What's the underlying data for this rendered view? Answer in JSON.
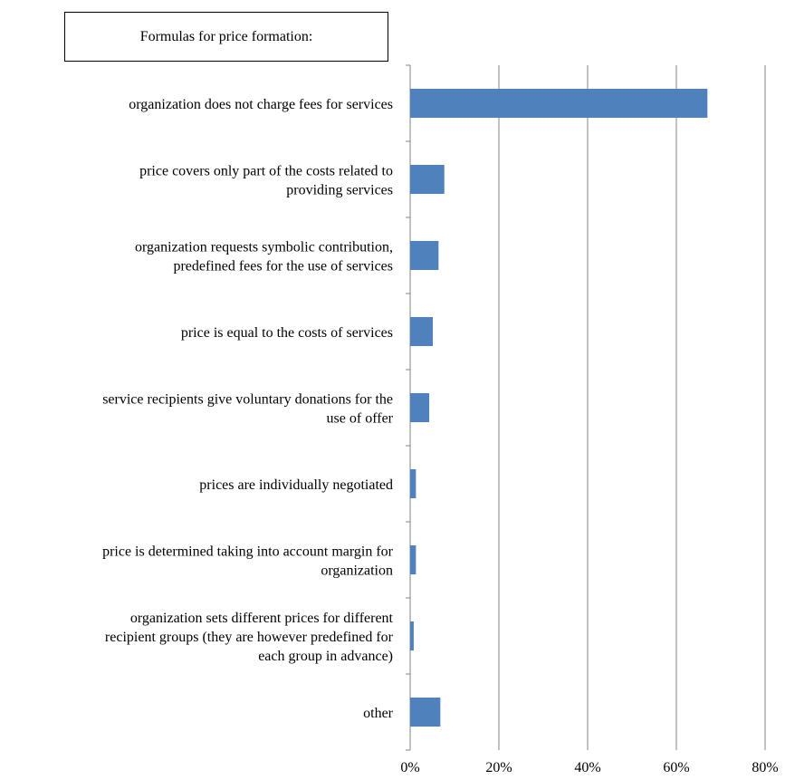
{
  "chart_data": {
    "type": "bar",
    "orientation": "horizontal",
    "title": "Formulas for price formation:",
    "categories": [
      [
        "organization does not charge fees for services"
      ],
      [
        "price covers only part of the costs related to",
        "providing services"
      ],
      [
        "organization requests symbolic contribution,",
        "predefined fees for the use of services"
      ],
      [
        "price is equal to the costs of services"
      ],
      [
        "service recipients give voluntary donations for the",
        "use of offer"
      ],
      [
        "prices are individually negotiated"
      ],
      [
        "price is determined taking into account margin for",
        "organization"
      ],
      [
        "organization sets different prices for different",
        "recipient groups (they are however predefined for",
        "each group in advance)"
      ],
      [
        "other"
      ]
    ],
    "values": [
      0.67,
      0.077,
      0.064,
      0.051,
      0.043,
      0.013,
      0.013,
      0.008,
      0.068
    ],
    "xlim": [
      0,
      0.8
    ],
    "xticks": [
      "0%",
      "20%",
      "40%",
      "60%",
      "80%"
    ],
    "grid": true,
    "bar_color": "#4f81bd"
  }
}
